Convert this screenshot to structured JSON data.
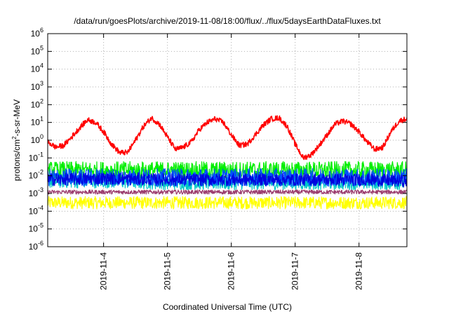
{
  "chart_data": {
    "type": "line",
    "title": "/data/run/goesPlots/archive/2019-11-08/18:00/flux/../flux/5daysEarthDataFluxes.txt",
    "xlabel": "Coordinated Universal Time (UTC)",
    "ylabel": {
      "pre": "protons/cm",
      "sup": "2",
      "post": "-s-sr-MeV"
    },
    "x_type": "time",
    "x_range": [
      "2019-11-03T03:00",
      "2019-11-08T18:00"
    ],
    "x_ticks": [
      {
        "date": "2019-11-04T00:00",
        "label": "2019-11-4"
      },
      {
        "date": "2019-11-05T00:00",
        "label": "2019-11-5"
      },
      {
        "date": "2019-11-06T00:00",
        "label": "2019-11-6"
      },
      {
        "date": "2019-11-07T00:00",
        "label": "2019-11-7"
      },
      {
        "date": "2019-11-08T00:00",
        "label": "2019-11-8"
      }
    ],
    "y_scale": "log",
    "ylim": [
      1e-06,
      1000000.0
    ],
    "y_ticks": [
      {
        "value": 1000000.0,
        "base": "10",
        "exp": "6"
      },
      {
        "value": 100000.0,
        "base": "10",
        "exp": "5"
      },
      {
        "value": 10000.0,
        "base": "10",
        "exp": "4"
      },
      {
        "value": 1000.0,
        "base": "10",
        "exp": "3"
      },
      {
        "value": 100.0,
        "base": "10",
        "exp": "2"
      },
      {
        "value": 10.0,
        "base": "10",
        "exp": "1"
      },
      {
        "value": 1.0,
        "base": "10",
        "exp": "0"
      },
      {
        "value": 0.1,
        "base": "10",
        "exp": "-1"
      },
      {
        "value": 0.01,
        "base": "10",
        "exp": "-2"
      },
      {
        "value": 0.001,
        "base": "10",
        "exp": "-3"
      },
      {
        "value": 0.0001,
        "base": "10",
        "exp": "-4"
      },
      {
        "value": 1e-05,
        "base": "10",
        "exp": "-5"
      },
      {
        "value": 1e-06,
        "base": "10",
        "exp": "-6"
      }
    ],
    "grid": true,
    "legend": "none",
    "series": [
      {
        "color": "#ffff00",
        "noise_decades": 0.35,
        "points": [
          [
            "2019-11-03T03:00",
            0.0003
          ],
          [
            "2019-11-04T00:00",
            0.0003
          ],
          [
            "2019-11-05T00:00",
            0.0003
          ],
          [
            "2019-11-06T00:00",
            0.0003
          ],
          [
            "2019-11-07T00:00",
            0.0003
          ],
          [
            "2019-11-08T00:00",
            0.0003
          ],
          [
            "2019-11-08T18:00",
            0.0003
          ]
        ]
      },
      {
        "color": "#00c8c8",
        "noise_decades": 0.4,
        "points": [
          [
            "2019-11-03T03:00",
            0.005
          ],
          [
            "2019-11-04T00:00",
            0.005
          ],
          [
            "2019-11-05T00:00",
            0.004
          ],
          [
            "2019-11-06T00:00",
            0.004
          ],
          [
            "2019-11-07T00:00",
            0.004
          ],
          [
            "2019-11-08T00:00",
            0.004
          ],
          [
            "2019-11-08T18:00",
            0.004
          ]
        ]
      },
      {
        "color": "#9b3c6e",
        "noise_decades": 0.12,
        "points": [
          [
            "2019-11-03T03:00",
            0.0012
          ],
          [
            "2019-11-04T00:00",
            0.0012
          ],
          [
            "2019-11-05T00:00",
            0.0012
          ],
          [
            "2019-11-06T00:00",
            0.0012
          ],
          [
            "2019-11-07T00:00",
            0.0012
          ],
          [
            "2019-11-08T00:00",
            0.0012
          ],
          [
            "2019-11-08T18:00",
            0.0012
          ]
        ]
      },
      {
        "color": "#00ee00",
        "noise_decades": 0.5,
        "points": [
          [
            "2019-11-03T03:00",
            0.02
          ],
          [
            "2019-11-04T00:00",
            0.02
          ],
          [
            "2019-11-05T00:00",
            0.02
          ],
          [
            "2019-11-06T00:00",
            0.02
          ],
          [
            "2019-11-07T00:00",
            0.02
          ],
          [
            "2019-11-08T00:00",
            0.02
          ],
          [
            "2019-11-08T18:00",
            0.02
          ]
        ]
      },
      {
        "color": "#0050ff",
        "noise_decades": 0.5,
        "points": [
          [
            "2019-11-03T03:00",
            0.008
          ],
          [
            "2019-11-04T00:00",
            0.008
          ],
          [
            "2019-11-05T00:00",
            0.008
          ],
          [
            "2019-11-06T00:00",
            0.008
          ],
          [
            "2019-11-07T00:00",
            0.008
          ],
          [
            "2019-11-08T00:00",
            0.008
          ],
          [
            "2019-11-08T18:00",
            0.008
          ]
        ]
      },
      {
        "color": "#0000dd",
        "noise_decades": 0.35,
        "points": [
          [
            "2019-11-03T03:00",
            0.006
          ],
          [
            "2019-11-04T00:00",
            0.007
          ],
          [
            "2019-11-05T00:00",
            0.006
          ],
          [
            "2019-11-06T00:00",
            0.006
          ],
          [
            "2019-11-07T00:00",
            0.006
          ],
          [
            "2019-11-08T00:00",
            0.006
          ],
          [
            "2019-11-08T18:00",
            0.005
          ]
        ]
      },
      {
        "color": "#ff0000",
        "noise_decades": 0.15,
        "points": [
          [
            "2019-11-03T03:00",
            0.8
          ],
          [
            "2019-11-03T06:00",
            0.4
          ],
          [
            "2019-11-03T09:00",
            0.5
          ],
          [
            "2019-11-03T12:00",
            1.5
          ],
          [
            "2019-11-03T15:00",
            5
          ],
          [
            "2019-11-03T18:00",
            14
          ],
          [
            "2019-11-03T21:00",
            10
          ],
          [
            "2019-11-04T00:00",
            3
          ],
          [
            "2019-11-04T03:00",
            0.6
          ],
          [
            "2019-11-04T06:00",
            0.2
          ],
          [
            "2019-11-04T09:00",
            0.2
          ],
          [
            "2019-11-04T12:00",
            1
          ],
          [
            "2019-11-04T15:00",
            6
          ],
          [
            "2019-11-04T18:00",
            18
          ],
          [
            "2019-11-04T21:00",
            8
          ],
          [
            "2019-11-05T00:00",
            1.5
          ],
          [
            "2019-11-05T03:00",
            0.3
          ],
          [
            "2019-11-05T06:00",
            0.4
          ],
          [
            "2019-11-05T09:00",
            0.8
          ],
          [
            "2019-11-05T12:00",
            4
          ],
          [
            "2019-11-05T15:00",
            10
          ],
          [
            "2019-11-05T18:00",
            16
          ],
          [
            "2019-11-05T21:00",
            10
          ],
          [
            "2019-11-06T00:00",
            2
          ],
          [
            "2019-11-06T03:00",
            0.5
          ],
          [
            "2019-11-06T06:00",
            0.6
          ],
          [
            "2019-11-06T09:00",
            2
          ],
          [
            "2019-11-06T12:00",
            7
          ],
          [
            "2019-11-06T15:00",
            16
          ],
          [
            "2019-11-06T18:00",
            18
          ],
          [
            "2019-11-06T21:00",
            6
          ],
          [
            "2019-11-07T00:00",
            0.6
          ],
          [
            "2019-11-07T03:00",
            0.1
          ],
          [
            "2019-11-07T06:00",
            0.15
          ],
          [
            "2019-11-07T09:00",
            0.5
          ],
          [
            "2019-11-07T12:00",
            2
          ],
          [
            "2019-11-07T15:00",
            8
          ],
          [
            "2019-11-07T18:00",
            12
          ],
          [
            "2019-11-07T21:00",
            8
          ],
          [
            "2019-11-08T00:00",
            3
          ],
          [
            "2019-11-08T03:00",
            0.8
          ],
          [
            "2019-11-08T06:00",
            0.3
          ],
          [
            "2019-11-08T09:00",
            0.4
          ],
          [
            "2019-11-08T12:00",
            3
          ],
          [
            "2019-11-08T15:00",
            12
          ],
          [
            "2019-11-08T18:00",
            16
          ]
        ]
      }
    ]
  }
}
